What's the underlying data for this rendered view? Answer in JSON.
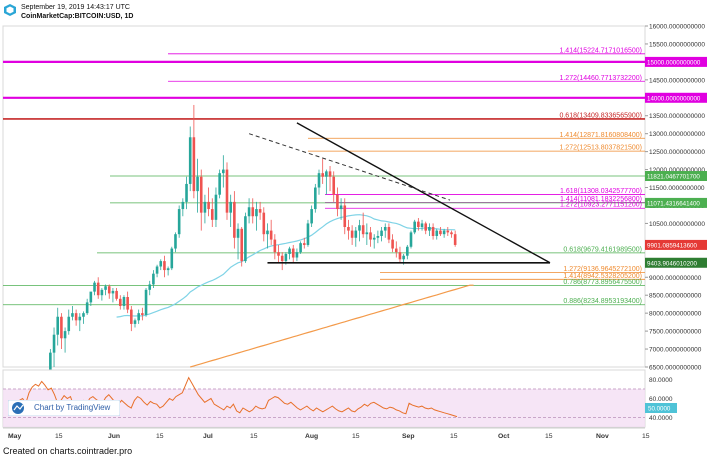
{
  "header": {
    "date": "September 19, 2019 14:43:17 UTC",
    "symbol": "CoinMarketCap:BITCOIN:USD, 1D"
  },
  "footer": {
    "credit": "Created on charts.cointrader.pro"
  },
  "watermark": {
    "label": "Chart by TradingView"
  },
  "colors": {
    "up": "#26a69a",
    "down": "#ef5350",
    "fib_magenta": "#e000e0",
    "fib_red": "#c62828",
    "fib_orange": "#ef8a2e",
    "fib_green": "#4caf50",
    "ma_blue": "#7fd3e6",
    "ma_orange": "#f39a4a",
    "rsi_line": "#e8702a",
    "rsi_band": "#f4dff4",
    "price_tag": "#e53935",
    "trend_black": "#111111"
  },
  "chart_data": {
    "type": "candlestick",
    "ylim": [
      6500,
      16000
    ],
    "ytick_labels": [
      "16000.0000000000",
      "15500.0000000000",
      "14500.0000000000",
      "13500.0000000000",
      "13000.0000000000",
      "12500.0000000000",
      "12000.0000000000",
      "11500.0000000000",
      "11000.0000000000",
      "10500.0000000000",
      "9000.0000000000",
      "8500.0000000000",
      "8000.0000000000",
      "7500.0000000000",
      "7000.0000000000",
      "6500.0000000000"
    ],
    "ytick_values": [
      16000,
      15500,
      14500,
      13500,
      13000,
      12500,
      12000,
      11500,
      11000,
      10500,
      9000,
      8500,
      8000,
      7500,
      7000,
      6500
    ],
    "x_tick_labels": [
      "May",
      "15",
      "Jun",
      "15",
      "Jul",
      "15",
      "Aug",
      "15",
      "Sep",
      "15",
      "Oct",
      "15",
      "Nov",
      "15"
    ],
    "current_price": "9901.0859413600",
    "support_tag": "9403.9046010200",
    "candle_groups": [
      {
        "name": "May",
        "values": [
          [
            5700,
            5800,
            5650,
            5780
          ],
          [
            5800,
            6150,
            5750,
            6100
          ],
          [
            6100,
            7000,
            6050,
            6900
          ],
          [
            6900,
            7600,
            6500,
            7400
          ],
          [
            7400,
            8150,
            7100,
            7900
          ],
          [
            7900,
            8000,
            7000,
            7300
          ],
          [
            7300,
            7600,
            6900,
            7500
          ],
          [
            7500,
            8100,
            7400,
            7900
          ],
          [
            7900,
            8200,
            7800,
            8000
          ],
          [
            8000,
            8100,
            7650,
            7800
          ],
          [
            7800,
            8000,
            7500,
            7900
          ],
          [
            7900,
            8050,
            7700,
            8000
          ],
          [
            8000,
            8400,
            7950,
            8300
          ],
          [
            8300,
            8500,
            8200,
            8600
          ],
          [
            8600,
            8900,
            8500,
            8850
          ],
          [
            8850,
            9000,
            8400,
            8500
          ],
          [
            8500,
            8700,
            8350,
            8650
          ],
          [
            8650,
            8800,
            8500,
            8750
          ],
          [
            8750,
            8800,
            8400,
            8550
          ],
          [
            8550,
            8700,
            8300,
            8620
          ],
          [
            8620,
            8700,
            8350,
            8400
          ],
          [
            8400,
            8500,
            8100,
            8200
          ],
          [
            8200,
            8500,
            8100,
            8450
          ]
        ]
      },
      {
        "name": "Jun",
        "values": [
          [
            8450,
            8600,
            8000,
            8100
          ],
          [
            8100,
            8200,
            7500,
            7700
          ],
          [
            7700,
            7850,
            7600,
            7800
          ],
          [
            7800,
            8100,
            7700,
            8000
          ],
          [
            8000,
            8150,
            7800,
            7950
          ],
          [
            7950,
            8700,
            7900,
            8650
          ],
          [
            8650,
            8900,
            8500,
            8800
          ],
          [
            8800,
            9200,
            8700,
            9100
          ],
          [
            9100,
            9350,
            9000,
            9300
          ],
          [
            9300,
            9500,
            9200,
            9450
          ],
          [
            9450,
            9600,
            9000,
            9200
          ],
          [
            9200,
            9300,
            9050,
            9250
          ],
          [
            9250,
            9850,
            9200,
            9800
          ],
          [
            9800,
            10250,
            9700,
            10200
          ],
          [
            10200,
            11000,
            10100,
            10900
          ],
          [
            10900,
            11200,
            10700,
            11100
          ],
          [
            11100,
            11800,
            10900,
            11600
          ],
          [
            11600,
            13200,
            11400,
            12900
          ],
          [
            12900,
            13800,
            11200,
            11400
          ],
          [
            11400,
            12300,
            10800,
            11800
          ],
          [
            11800,
            12000,
            10300,
            10800
          ],
          [
            10800,
            11300,
            10500,
            11100
          ],
          [
            11100,
            11500,
            10700,
            10900
          ],
          [
            10900,
            11200,
            10400,
            10600
          ],
          [
            10600,
            11500,
            10400,
            11300
          ],
          [
            11300,
            12000,
            11200,
            11900
          ],
          [
            11900,
            12400,
            11500,
            12000
          ],
          [
            12000,
            12200,
            10600,
            10800
          ]
        ]
      },
      {
        "name": "Jul",
        "values": [
          [
            10800,
            11300,
            10400,
            11100
          ],
          [
            11100,
            11400,
            9800,
            10100
          ],
          [
            10100,
            10500,
            9500,
            10350
          ],
          [
            10350,
            10400,
            9300,
            9450
          ],
          [
            9450,
            10800,
            9400,
            10700
          ],
          [
            10700,
            11200,
            10500,
            10950
          ],
          [
            10950,
            11200,
            10500,
            10700
          ],
          [
            10700,
            11100,
            10300,
            10900
          ],
          [
            10900,
            11100,
            10600,
            10800
          ],
          [
            10800,
            10950,
            10000,
            10200
          ],
          [
            10200,
            10500,
            9800,
            10300
          ],
          [
            10300,
            10600,
            9900,
            10050
          ],
          [
            10050,
            10200,
            9500,
            9700
          ],
          [
            9700,
            9900,
            9400,
            9600
          ],
          [
            9600,
            9700,
            9200,
            9450
          ],
          [
            9450,
            9700,
            9350,
            9650
          ],
          [
            9650,
            9850,
            9500,
            9800
          ],
          [
            9800,
            9900,
            9400,
            9550
          ],
          [
            9550,
            9800,
            9450,
            9700
          ],
          [
            9700,
            10000,
            9650,
            9950
          ],
          [
            9950,
            10100,
            9800,
            9900
          ],
          [
            9900,
            10600,
            9850,
            10500
          ],
          [
            10500,
            11000,
            10400,
            10900
          ]
        ]
      },
      {
        "name": "Aug",
        "values": [
          [
            10900,
            11600,
            10800,
            11500
          ],
          [
            11500,
            12000,
            11300,
            11900
          ],
          [
            11900,
            12300,
            11600,
            11800
          ],
          [
            11800,
            12000,
            11300,
            11950
          ],
          [
            11950,
            12100,
            11400,
            11800
          ],
          [
            11800,
            11950,
            11100,
            11300
          ],
          [
            11300,
            11500,
            10700,
            10900
          ],
          [
            10900,
            11200,
            10600,
            11000
          ],
          [
            11000,
            11200,
            10200,
            10400
          ],
          [
            10400,
            10600,
            10050,
            10300
          ],
          [
            10300,
            10450,
            9900,
            10100
          ],
          [
            10100,
            10400,
            9850,
            10300
          ],
          [
            10300,
            10600,
            10000,
            10450
          ],
          [
            10450,
            10800,
            10100,
            10200
          ],
          [
            10200,
            10500,
            9900,
            10250
          ],
          [
            10250,
            10400,
            9850,
            10050
          ],
          [
            10050,
            10200,
            9800,
            10100
          ],
          [
            10100,
            10300,
            9950,
            10150
          ],
          [
            10150,
            10400,
            10000,
            10300
          ],
          [
            10300,
            10500,
            10100,
            10400
          ],
          [
            10400,
            10500,
            9950,
            10050
          ],
          [
            10050,
            10200,
            9700,
            9800
          ],
          [
            9800,
            10000,
            9550,
            9700
          ],
          [
            9700,
            9850,
            9400,
            9500
          ],
          [
            9500,
            9650,
            9350,
            9600
          ]
        ]
      },
      {
        "name": "Sep",
        "values": [
          [
            9600,
            9900,
            9500,
            9850
          ],
          [
            9850,
            10300,
            9800,
            10250
          ],
          [
            10250,
            10600,
            10200,
            10550
          ],
          [
            10550,
            10650,
            10300,
            10400
          ],
          [
            10400,
            10600,
            10300,
            10500
          ],
          [
            10500,
            10550,
            10200,
            10300
          ],
          [
            10300,
            10500,
            10150,
            10400
          ],
          [
            10400,
            10500,
            10050,
            10150
          ],
          [
            10150,
            10350,
            10050,
            10300
          ],
          [
            10300,
            10400,
            10150,
            10200
          ],
          [
            10200,
            10350,
            10100,
            10300
          ],
          [
            10300,
            10400,
            10150,
            10250
          ],
          [
            10250,
            10300,
            10100,
            10200
          ],
          [
            10200,
            10300,
            9850,
            9900
          ]
        ]
      }
    ],
    "fib_levels": [
      {
        "ratio": "1.414",
        "value": 15224.71710165,
        "label": "1.414(15224.7171016500)",
        "color": "fib_magenta"
      },
      {
        "ratio": "",
        "value": 15000,
        "label": "15000.0000000000",
        "color": "fib_magenta",
        "tag": true
      },
      {
        "ratio": "1.272",
        "value": 14460.77137322,
        "label": "1.272(14460.7713732200)",
        "color": "fib_magenta"
      },
      {
        "ratio": "",
        "value": 14000,
        "label": "14000.0000000000",
        "color": "fib_magenta",
        "tag": true
      },
      {
        "ratio": "0.618",
        "value": 13409.83365659,
        "label": "0.618(13409.8336565900)",
        "color": "fib_red"
      },
      {
        "ratio": "1.414",
        "value": 12871.81608084,
        "label": "1.414(12871.8160808400)",
        "color": "fib_orange"
      },
      {
        "ratio": "1.272",
        "value": 12513.80378215,
        "label": "1.272(12513.8037821500)",
        "color": "fib_orange"
      },
      {
        "ratio": "",
        "value": 11821.04677017,
        "label": "11821.0467701700",
        "color": "fib_green",
        "tag": true
      },
      {
        "ratio": "1.618",
        "value": 11308.03425777,
        "label": "1.618(11308.0342577700)",
        "color": "fib_magenta"
      },
      {
        "ratio": "1.414",
        "value": 11081.18322568,
        "label": "1.414(11081.1832256800)",
        "color": "fib_magenta"
      },
      {
        "ratio": "",
        "value": 11071.43166414,
        "label": "11071.4316641400",
        "color": "fib_green",
        "tag": true
      },
      {
        "ratio": "1.272",
        "value": 10923.27711512,
        "label": "1.272(10923.2771151200)",
        "color": "fib_magenta"
      },
      {
        "ratio": "0.618",
        "value": 9679.41619895,
        "label": "0.618(9679.4161989500)",
        "color": "fib_green"
      },
      {
        "ratio": "1.272",
        "value": 9136.96452721,
        "label": "1.272(9136.9645272100)",
        "color": "fib_orange"
      },
      {
        "ratio": "1.414",
        "value": 8942.53282052,
        "label": "1.414(8942.5328205200)",
        "color": "fib_orange"
      },
      {
        "ratio": "0.786",
        "value": 8773.89564755,
        "label": "0.786(8773.8956475500)",
        "color": "fib_green"
      },
      {
        "ratio": "0.886",
        "value": 8234.89531934,
        "label": "0.886(8234.8953193400)",
        "color": "fib_green"
      }
    ],
    "rsi": {
      "ytick_labels": [
        "80.0000",
        "60.0000",
        "50.0000",
        "40.0000"
      ],
      "ytick_values": [
        80,
        60,
        50,
        40
      ],
      "band": [
        30,
        70
      ],
      "current": "50.0000",
      "values": [
        48,
        52,
        58,
        60,
        55,
        66,
        72,
        75,
        73,
        78,
        74,
        69,
        71,
        64,
        55,
        58,
        63,
        60,
        62,
        52,
        50,
        56,
        58,
        54,
        60,
        62,
        59,
        57,
        55,
        61,
        64,
        60,
        56,
        54,
        58,
        55,
        52,
        50,
        58,
        62,
        60,
        56,
        53,
        57,
        55,
        54,
        50,
        52,
        56,
        60,
        58,
        62,
        64,
        66,
        74,
        82,
        76,
        70,
        64,
        60,
        56,
        58,
        60,
        54,
        52,
        50,
        48,
        52,
        50,
        54,
        47,
        45,
        50,
        48,
        46,
        48,
        52,
        50,
        49,
        50,
        58,
        60,
        62,
        61,
        58,
        55,
        54,
        56,
        53,
        50,
        48,
        50,
        52,
        49,
        47,
        50,
        48,
        46,
        48,
        50,
        52,
        49,
        47,
        46,
        48,
        50,
        47,
        46,
        49,
        51,
        54,
        52,
        55,
        56,
        54,
        52,
        50,
        49,
        51,
        50,
        48,
        47,
        45,
        44,
        55,
        53,
        52,
        51,
        52,
        50,
        49,
        50,
        48,
        47,
        46,
        45,
        44,
        43,
        42,
        41
      ]
    }
  }
}
